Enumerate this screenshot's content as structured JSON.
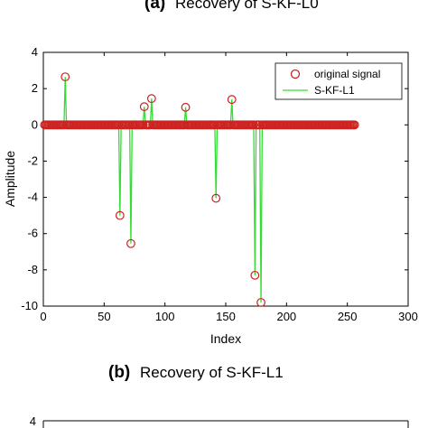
{
  "chart_data": [
    {
      "type": "line",
      "panel_tag": "(a)",
      "title": "Recovery of S-KF-L0",
      "xlabel": "Index",
      "ylabel": "Amplitude",
      "xlim": [
        0,
        300
      ],
      "ylim": [
        -10,
        4
      ],
      "xticks": [
        0,
        50,
        100,
        150,
        200,
        250,
        300
      ],
      "yticks": [
        4,
        2,
        0,
        -2,
        -4,
        -6,
        -8,
        -10
      ],
      "n_points": 256,
      "spikes": [
        {
          "x": 18,
          "y": 2.65
        },
        {
          "x": 63,
          "y": -5.0
        },
        {
          "x": 72,
          "y": -6.55
        },
        {
          "x": 83,
          "y": 1.0
        },
        {
          "x": 89,
          "y": 1.45
        },
        {
          "x": 117,
          "y": 0.97
        },
        {
          "x": 142,
          "y": -4.05
        },
        {
          "x": 155,
          "y": 1.4
        },
        {
          "x": 174,
          "y": -8.3
        },
        {
          "x": 179,
          "y": -9.8
        }
      ],
      "series": [
        {
          "name": "original signal",
          "marker": "circle",
          "color": "#cc2222"
        },
        {
          "name": "S-KF-L1",
          "marker": "line",
          "color": "#33dd33"
        }
      ],
      "legend_position": "top-right",
      "grid": false
    },
    {
      "type": "line",
      "panel_tag": "(b)",
      "title": "Recovery of S-KF-L1",
      "yticks": [
        4
      ]
    }
  ]
}
